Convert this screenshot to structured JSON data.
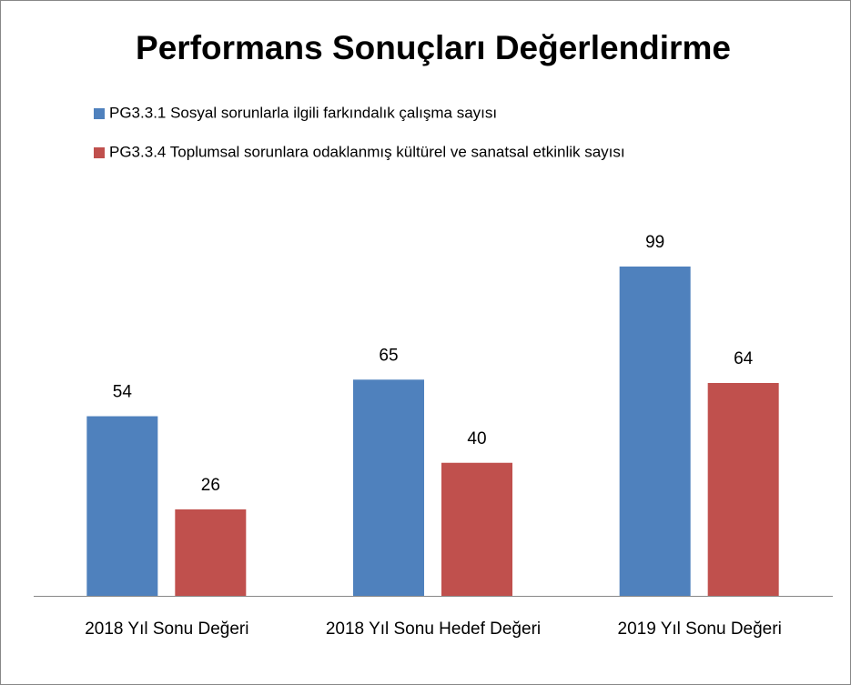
{
  "chart_data": {
    "type": "bar",
    "title": "Performans Sonuçları Değerlendirme",
    "categories": [
      "2018 Yıl Sonu Değeri",
      "2018 Yıl Sonu Hedef Değeri",
      "2019 Yıl Sonu Değeri"
    ],
    "series": [
      {
        "name": "PG3.3.1 Sosyal sorunlarla ilgili farkındalık çalışma sayısı",
        "color": "#4f81bd",
        "values": [
          54,
          65,
          99
        ]
      },
      {
        "name": "PG3.3.4 Toplumsal sorunlara odaklanmış kültürel ve sanatsal etkinlik sayısı",
        "color": "#c0504d",
        "values": [
          26,
          40,
          64
        ]
      }
    ]
  }
}
